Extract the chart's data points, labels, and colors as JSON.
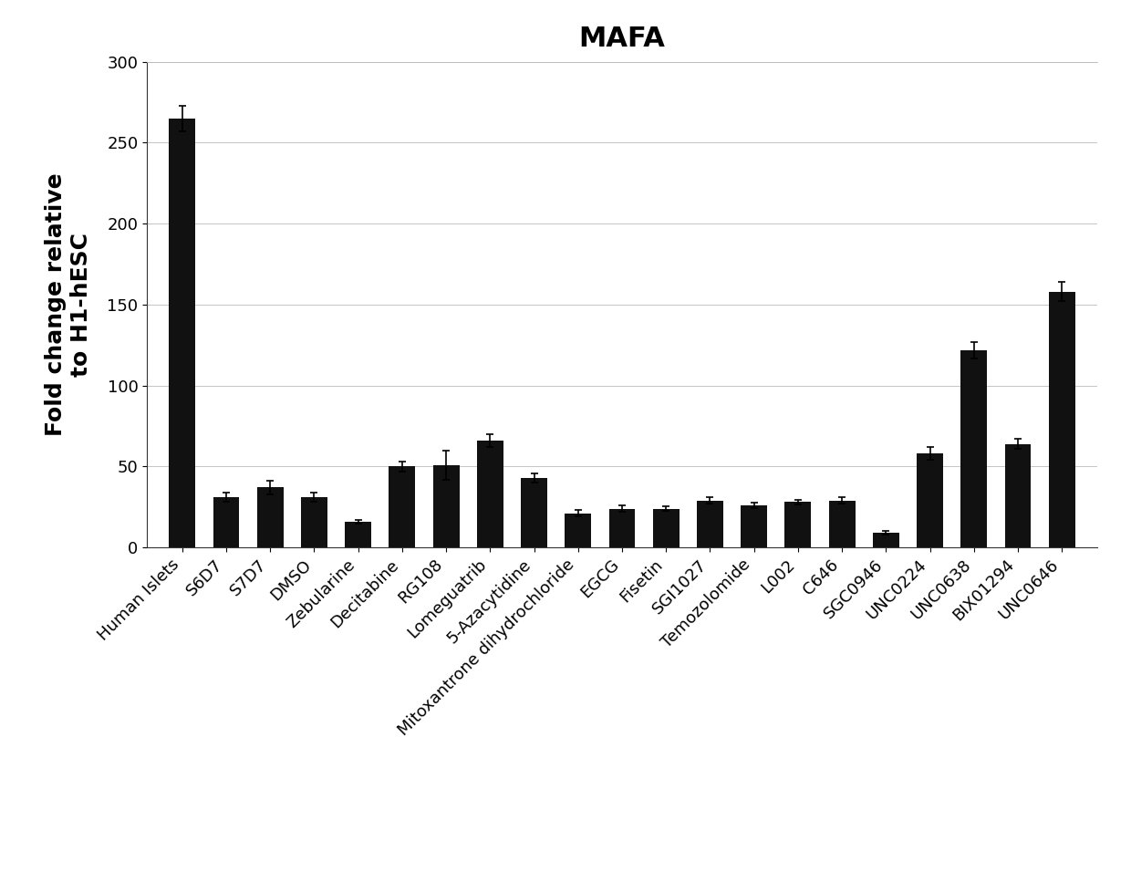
{
  "title": "MAFA",
  "ylabel_line1": "Fold change relative",
  "ylabel_line2": "to H1-hESC",
  "categories": [
    "Human Islets",
    "S6D7",
    "S7D7",
    "DMSO",
    "Zebularine",
    "Decitabine",
    "RG108",
    "Lomeguatrib",
    "5-Azacytidine",
    "Mitoxantrone dihydrochloride",
    "EGCG",
    "Fisetin",
    "SGI1027",
    "Temozolomide",
    "L002",
    "C646",
    "SGC0946",
    "UNC0224",
    "UNC0638",
    "BIX01294",
    "UNC0646"
  ],
  "values": [
    265,
    31,
    37,
    31,
    16,
    50,
    51,
    66,
    43,
    21,
    24,
    24,
    29,
    26,
    28,
    29,
    9,
    58,
    122,
    64,
    158
  ],
  "errors": [
    8,
    3,
    4,
    3,
    1,
    3,
    9,
    4,
    3,
    2,
    2,
    1.5,
    2,
    1.5,
    1.5,
    2,
    1,
    4,
    5,
    3,
    6
  ],
  "bar_color": "#111111",
  "background_color": "#ffffff",
  "ylim": [
    0,
    300
  ],
  "yticks": [
    0,
    50,
    100,
    150,
    200,
    250,
    300
  ],
  "title_fontsize": 22,
  "ylabel_fontsize": 18,
  "tick_fontsize": 13,
  "grid_color": "#bbbbbb",
  "grid_linestyle": "-",
  "grid_linewidth": 0.6,
  "bar_width": 0.6
}
